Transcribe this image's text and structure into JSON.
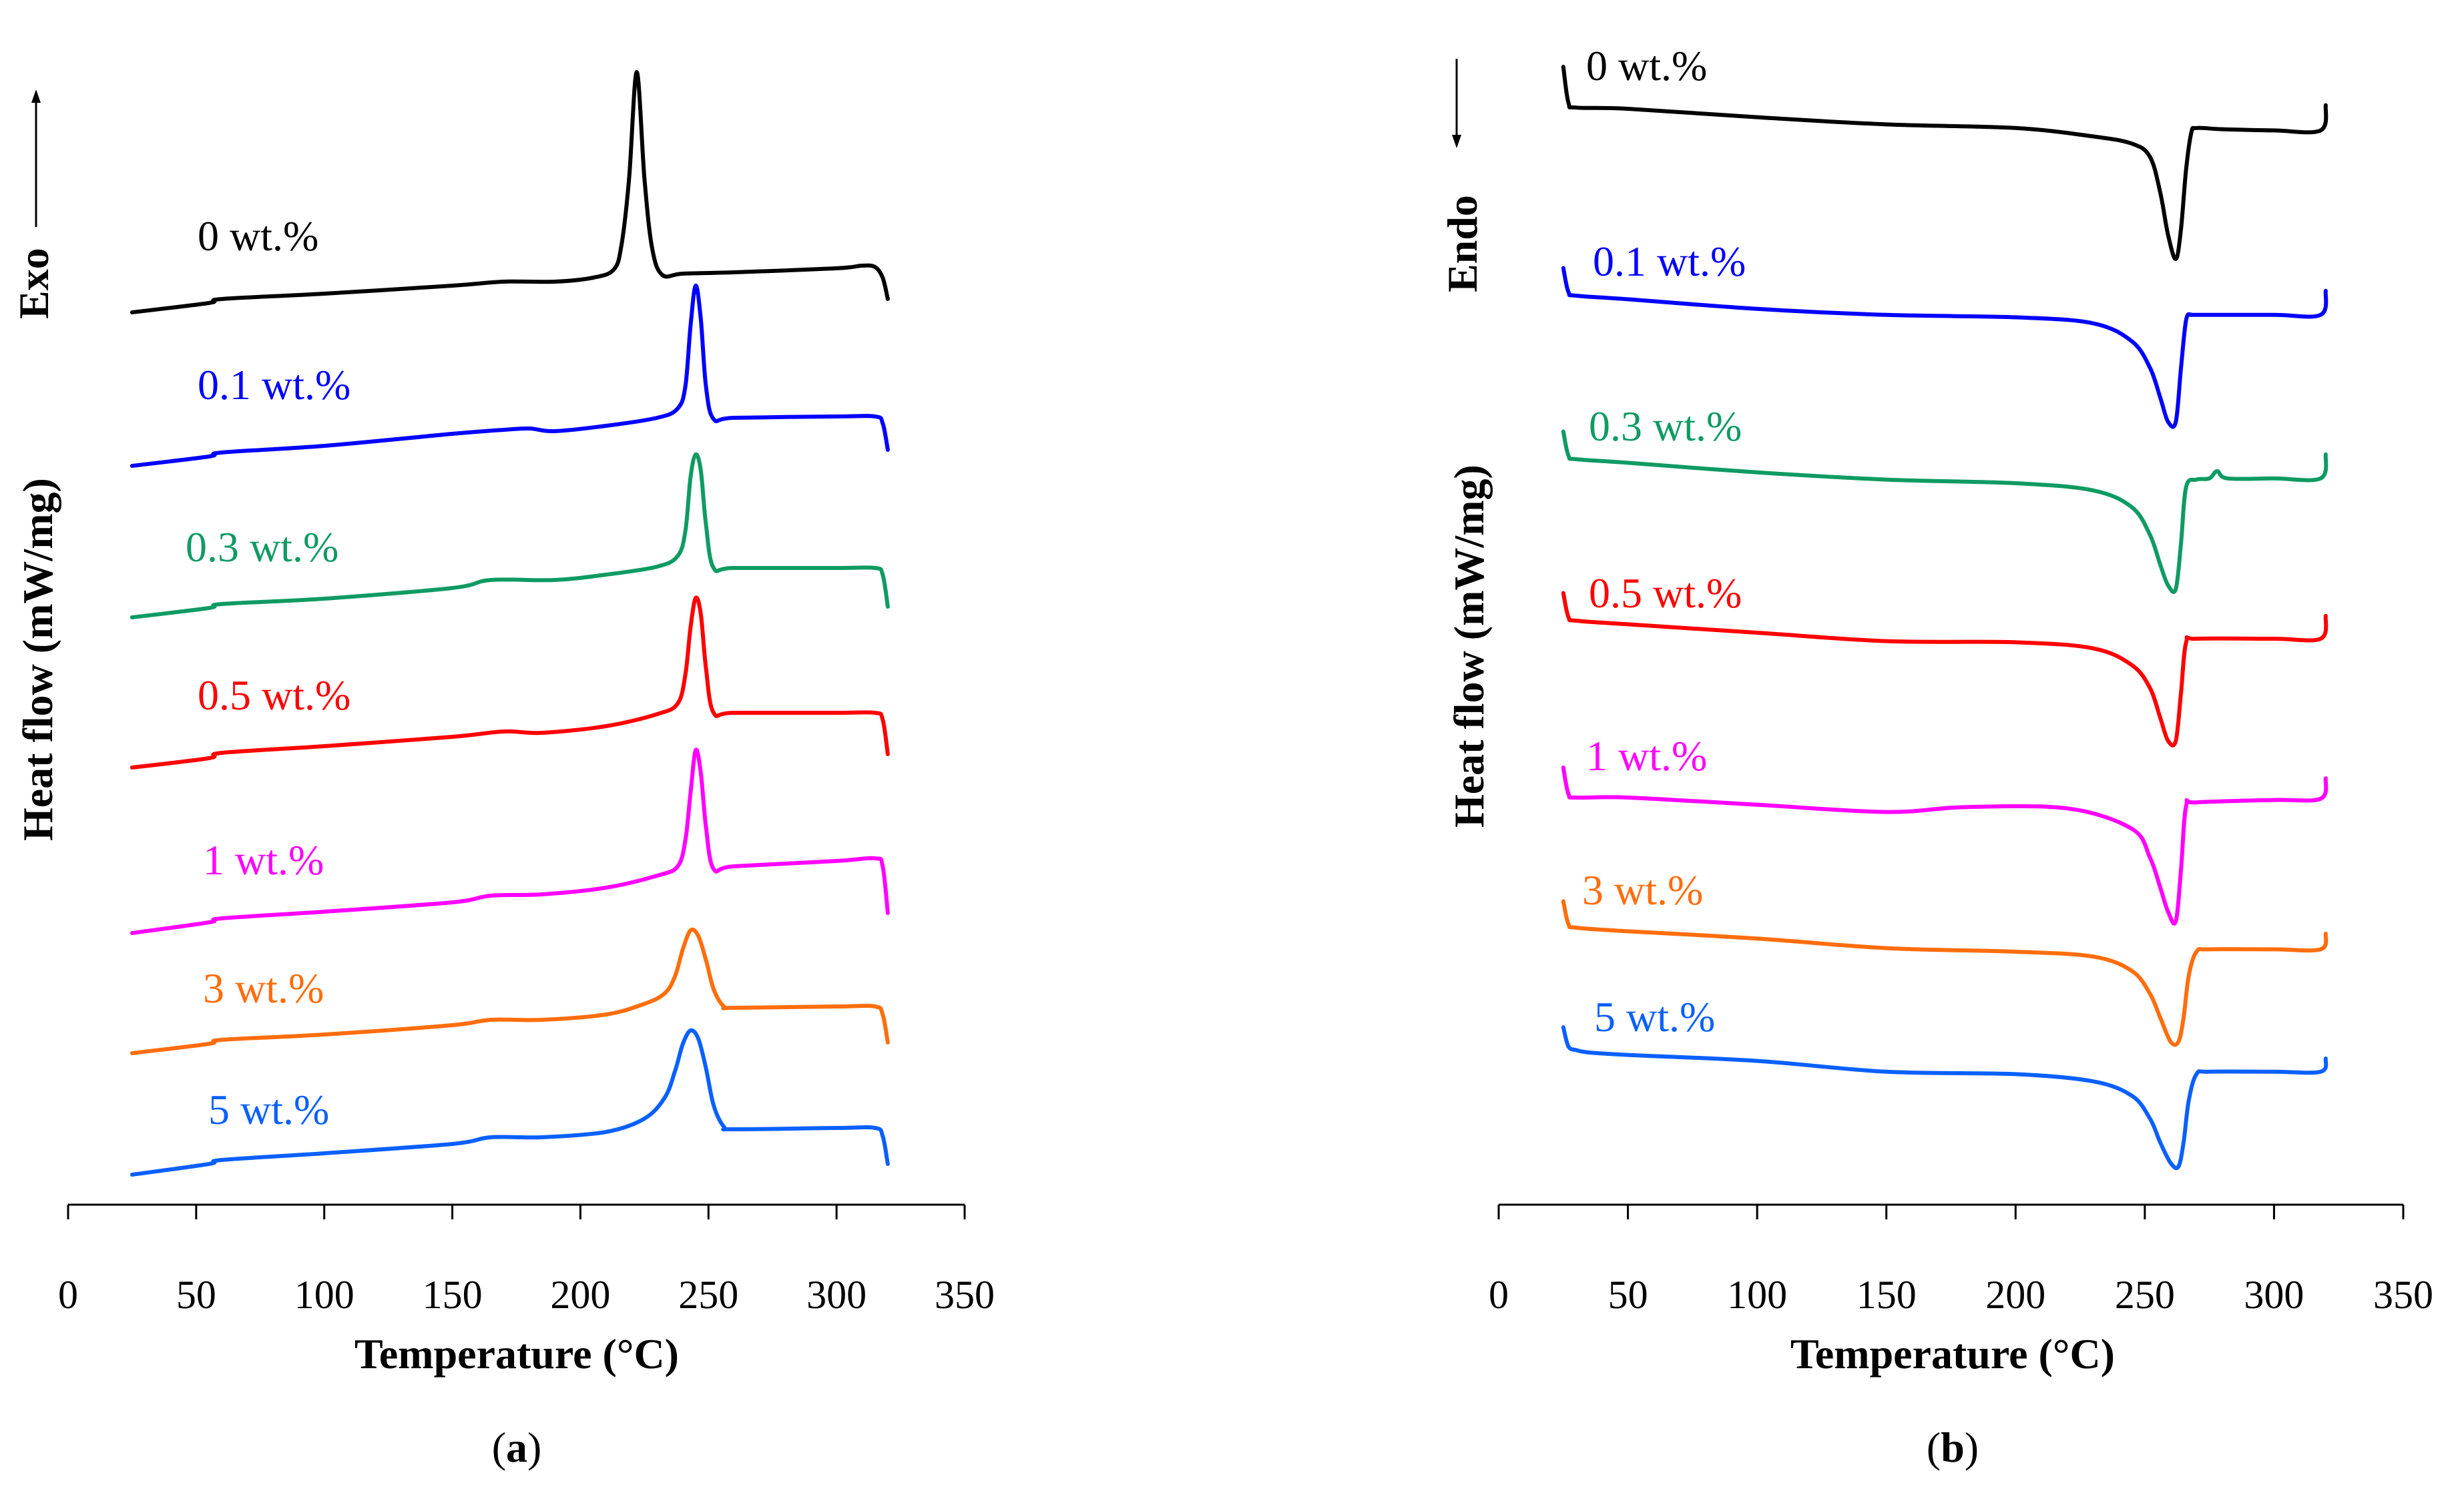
{
  "chart_data": [
    {
      "type": "line",
      "panel": "a",
      "sublabel_open": "(",
      "sublabel_letter": "a",
      "sublabel_close": ")",
      "xlabel": "Temperature (°C)",
      "ylabel": "Heat flow (mW/mg)",
      "direction_label": "Exo",
      "direction_arrow": "up",
      "xlim": [
        0,
        350
      ],
      "xticks": [
        "0",
        "50",
        "100",
        "150",
        "200",
        "250",
        "300",
        "350"
      ],
      "y_ticks_shown": false,
      "series": [
        {
          "name": "0 wt.%",
          "color": "#000000",
          "baseline": 0,
          "x": [
            25,
            55,
            60,
            100,
            150,
            170,
            190,
            205,
            213,
            216,
            219,
            222,
            225,
            228,
            232,
            240,
            260,
            300,
            310,
            315,
            318,
            320
          ],
          "y": [
            0,
            0.7,
            1.0,
            1.4,
            2.0,
            2.3,
            2.3,
            2.6,
            3.2,
            5.0,
            10.0,
            18.0,
            10.0,
            4.8,
            2.8,
            2.9,
            3.0,
            3.3,
            3.5,
            3.4,
            2.6,
            1.0
          ]
        },
        {
          "name": "0.1 wt.%",
          "color": "#0000ff",
          "baseline": 0,
          "x": [
            25,
            55,
            60,
            100,
            150,
            170,
            180,
            190,
            210,
            230,
            238,
            241,
            243,
            245,
            247,
            249,
            252,
            260,
            300,
            315,
            318,
            320
          ],
          "y": [
            0,
            0.7,
            1.0,
            1.5,
            2.4,
            2.7,
            2.8,
            2.6,
            3.0,
            3.6,
            4.3,
            6.0,
            10.5,
            13.5,
            11.0,
            6.0,
            3.5,
            3.6,
            3.7,
            3.7,
            3.2,
            1.2
          ]
        },
        {
          "name": "0.3 wt.%",
          "color": "#0f9b63",
          "baseline": 0,
          "x": [
            25,
            55,
            60,
            100,
            150,
            165,
            190,
            210,
            230,
            238,
            241,
            243,
            245,
            247,
            249,
            252,
            260,
            300,
            315,
            318,
            320
          ],
          "y": [
            0,
            0.7,
            1.0,
            1.4,
            2.2,
            2.8,
            2.8,
            3.2,
            3.8,
            4.6,
            6.5,
            10.5,
            12.2,
            11.0,
            7.0,
            3.7,
            3.7,
            3.7,
            3.7,
            3.2,
            0.8
          ]
        },
        {
          "name": "0.5 wt.%",
          "color": "#ff0000",
          "baseline": 0,
          "x": [
            25,
            55,
            60,
            100,
            150,
            170,
            185,
            210,
            230,
            238,
            241,
            243,
            245,
            247,
            249,
            252,
            260,
            300,
            315,
            318,
            320
          ],
          "y": [
            0,
            0.7,
            1.1,
            1.6,
            2.3,
            2.7,
            2.6,
            3.1,
            4.0,
            4.8,
            7.0,
            10.5,
            12.7,
            11.5,
            7.5,
            4.1,
            4.1,
            4.1,
            4.1,
            3.6,
            1.0
          ]
        },
        {
          "name": "1 wt.%",
          "color": "#ff00ff",
          "baseline": 0,
          "x": [
            25,
            55,
            60,
            100,
            150,
            165,
            185,
            210,
            230,
            238,
            241,
            243,
            245,
            247,
            249,
            252,
            260,
            300,
            315,
            318,
            320
          ],
          "y": [
            0,
            0.8,
            1.1,
            1.6,
            2.3,
            2.8,
            2.9,
            3.4,
            4.3,
            5.0,
            7.0,
            10.5,
            13.7,
            12.0,
            8.0,
            4.8,
            5.0,
            5.4,
            5.6,
            5.0,
            1.5
          ]
        },
        {
          "name": "3 wt.%",
          "color": "#ff6d0d",
          "baseline": 0,
          "x": [
            25,
            55,
            60,
            100,
            150,
            165,
            185,
            210,
            225,
            233,
            237,
            240,
            243,
            246,
            249,
            252,
            256,
            260,
            300,
            315,
            318,
            320
          ],
          "y": [
            0,
            0.7,
            1.0,
            1.4,
            2.1,
            2.5,
            2.5,
            2.9,
            3.7,
            4.5,
            5.8,
            7.8,
            9.2,
            8.8,
            7.0,
            4.8,
            3.5,
            3.4,
            3.5,
            3.5,
            2.9,
            0.8
          ]
        },
        {
          "name": "5 wt.%",
          "color": "#0a60ff",
          "baseline": 0,
          "x": [
            25,
            55,
            60,
            100,
            150,
            165,
            185,
            210,
            225,
            233,
            237,
            240,
            243,
            246,
            249,
            252,
            256,
            260,
            300,
            315,
            318,
            320
          ],
          "y": [
            0,
            0.8,
            1.1,
            1.6,
            2.3,
            2.8,
            2.8,
            3.2,
            4.2,
            5.8,
            7.8,
            9.8,
            10.8,
            10.2,
            8.0,
            5.2,
            3.6,
            3.4,
            3.5,
            3.5,
            2.9,
            0.8
          ]
        }
      ]
    },
    {
      "type": "line",
      "panel": "b",
      "sublabel_open": "(",
      "sublabel_letter": "b",
      "sublabel_close": ")",
      "xlabel": "Temperature (°C)",
      "ylabel": "Heat flow (mW/mg)",
      "direction_label": "Endo",
      "direction_arrow": "down",
      "xlim": [
        0,
        350
      ],
      "xticks": [
        "0",
        "50",
        "100",
        "150",
        "200",
        "250",
        "300",
        "350"
      ],
      "y_ticks_shown": false,
      "series": [
        {
          "name": "0 wt.%",
          "color": "#000000",
          "baseline": 0,
          "x": [
            25,
            27,
            30,
            50,
            100,
            150,
            200,
            230,
            245,
            252,
            256,
            259,
            262,
            264,
            266,
            268,
            270,
            280,
            300,
            318,
            320
          ],
          "y": [
            3.5,
            0.5,
            0.1,
            0,
            -0.7,
            -1.3,
            -1.6,
            -2.3,
            -2.9,
            -4.0,
            -7.0,
            -10.5,
            -12.5,
            -10.0,
            -5.0,
            -2.0,
            -1.6,
            -1.7,
            -1.8,
            -1.8,
            0.3
          ]
        },
        {
          "name": "0.1 wt.%",
          "color": "#0000ff",
          "baseline": 0,
          "x": [
            25,
            27,
            30,
            50,
            100,
            150,
            200,
            230,
            245,
            252,
            256,
            259,
            262,
            264,
            266,
            268,
            270,
            300,
            318,
            320
          ],
          "y": [
            2.3,
            0.3,
            0,
            -0.3,
            -1.1,
            -1.6,
            -1.8,
            -2.3,
            -3.8,
            -6.0,
            -8.5,
            -10.5,
            -10.5,
            -6.0,
            -2.0,
            -1.6,
            -1.6,
            -1.6,
            -1.6,
            0.4
          ]
        },
        {
          "name": "0.3 wt.%",
          "color": "#0f9b63",
          "baseline": 0,
          "x": [
            25,
            27,
            30,
            50,
            100,
            150,
            200,
            230,
            245,
            252,
            256,
            259,
            262,
            264,
            266,
            270,
            275,
            278,
            282,
            300,
            318,
            320
          ],
          "y": [
            2.3,
            0.3,
            0,
            -0.3,
            -1.1,
            -1.7,
            -2.0,
            -2.6,
            -4.0,
            -6.3,
            -8.8,
            -10.5,
            -10.8,
            -7.0,
            -2.3,
            -1.7,
            -1.6,
            -1.0,
            -1.6,
            -1.6,
            -1.6,
            0.4
          ]
        },
        {
          "name": "0.5 wt.%",
          "color": "#ff0000",
          "baseline": 0,
          "x": [
            25,
            27,
            30,
            50,
            100,
            150,
            200,
            230,
            245,
            252,
            256,
            259,
            262,
            264,
            266,
            270,
            300,
            318,
            320
          ],
          "y": [
            2.3,
            0.3,
            0,
            -0.3,
            -1.0,
            -1.7,
            -1.8,
            -2.3,
            -3.7,
            -5.6,
            -8.1,
            -10.0,
            -10.0,
            -6.0,
            -1.8,
            -1.5,
            -1.5,
            -1.5,
            0.4
          ]
        },
        {
          "name": "1 wt.%",
          "color": "#ff00ff",
          "baseline": 0,
          "x": [
            25,
            27,
            30,
            50,
            100,
            150,
            180,
            220,
            245,
            252,
            256,
            259,
            262,
            264,
            266,
            270,
            300,
            318,
            320
          ],
          "y": [
            2.5,
            0.3,
            0,
            0,
            -0.6,
            -1.2,
            -0.8,
            -0.9,
            -2.6,
            -5.0,
            -7.5,
            -9.5,
            -10.3,
            -6.0,
            -0.7,
            -0.4,
            -0.2,
            -0.1,
            1.6
          ]
        },
        {
          "name": "3 wt.%",
          "color": "#ff6d0d",
          "baseline": 0,
          "x": [
            25,
            27,
            30,
            50,
            100,
            150,
            200,
            230,
            245,
            252,
            256,
            260,
            263,
            265,
            267,
            270,
            275,
            300,
            318,
            320
          ],
          "y": [
            2.2,
            0.3,
            0,
            -0.3,
            -0.9,
            -1.7,
            -2.0,
            -2.4,
            -3.6,
            -5.5,
            -7.5,
            -9.5,
            -9.5,
            -7.5,
            -4.0,
            -2.0,
            -1.8,
            -1.8,
            -1.8,
            -0.5
          ]
        },
        {
          "name": "5 wt.%",
          "color": "#0a60ff",
          "baseline": 0,
          "x": [
            25,
            27,
            30,
            35,
            50,
            100,
            150,
            200,
            230,
            245,
            252,
            256,
            260,
            263,
            265,
            267,
            270,
            275,
            300,
            318,
            320
          ],
          "y": [
            2.1,
            0.5,
            0.2,
            0,
            -0.2,
            -0.7,
            -1.6,
            -1.8,
            -2.4,
            -3.6,
            -5.5,
            -7.5,
            -9.2,
            -9.5,
            -7.5,
            -4.0,
            -1.8,
            -1.6,
            -1.6,
            -1.6,
            -0.5
          ]
        }
      ]
    }
  ]
}
